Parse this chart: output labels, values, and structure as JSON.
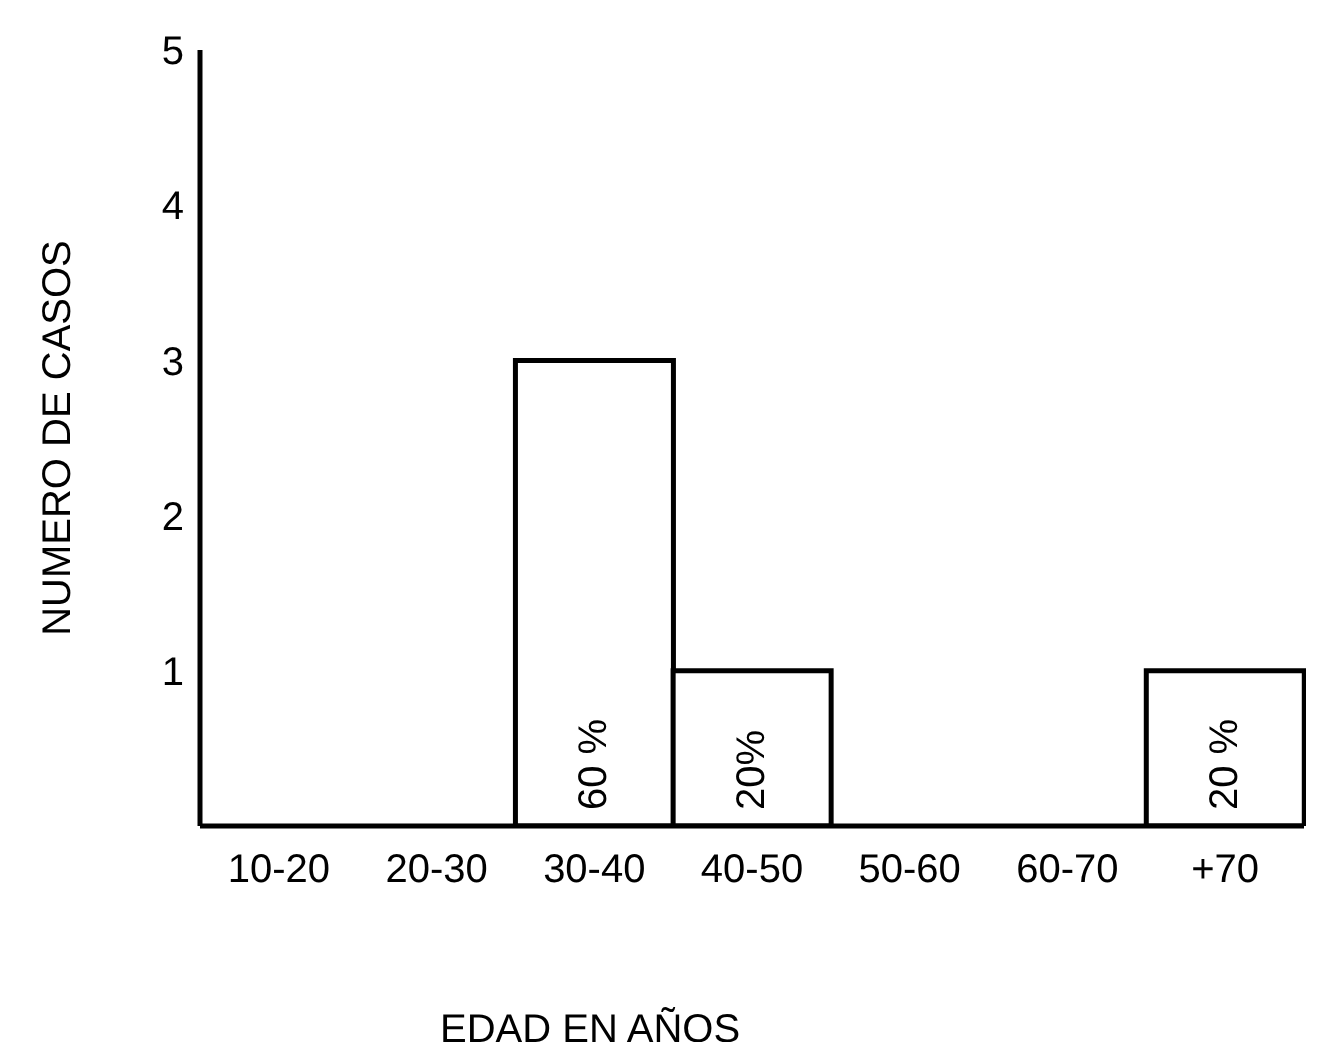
{
  "chart_data": {
    "type": "bar",
    "categories": [
      "10-20",
      "20-30",
      "30-40",
      "40-50",
      "50-60",
      "60-70",
      "+70"
    ],
    "values": [
      0,
      0,
      3,
      1,
      0,
      0,
      1
    ],
    "annotations": [
      "60 %",
      "20%",
      "20 %"
    ],
    "color": "#ffffff",
    "ylim": [
      0,
      5
    ],
    "yticks": [
      1,
      2,
      3,
      4,
      5
    ],
    "xlabel": "EDAD  EN  AÑOS",
    "ylabel": "NUMERO  DE  CASOS",
    "grid": false,
    "legend": false
  }
}
